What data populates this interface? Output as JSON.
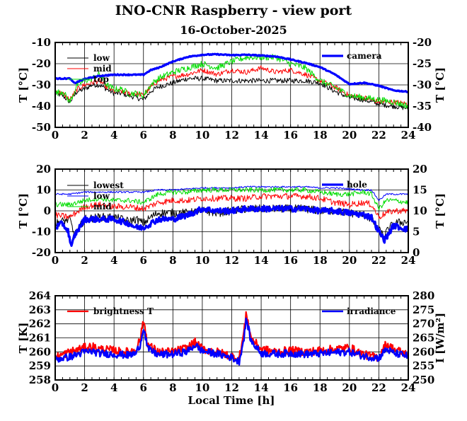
{
  "title": "INO-CNR Raspberry - view port",
  "subtitle": "16-October-2025",
  "colors": {
    "black": "#000000",
    "red": "#ff0000",
    "green": "#00dd00",
    "blue": "#0000ff"
  },
  "chart_data": [
    {
      "type": "line",
      "name": "temperatures-top",
      "xlim": [
        0,
        24
      ],
      "xticks": [
        0,
        2,
        4,
        6,
        8,
        10,
        12,
        14,
        16,
        18,
        20,
        22,
        24
      ],
      "ylim": [
        -50,
        -10
      ],
      "yticks": [
        -50,
        -40,
        -30,
        -20,
        -10
      ],
      "ylabel": "T [°C]",
      "y2lim": [
        -40,
        -20
      ],
      "y2ticks": [
        -40,
        -35,
        -30,
        -25,
        -20
      ],
      "y2label": "T [°C]",
      "legend_left": [
        "low",
        "mid",
        "top"
      ],
      "legend_right": [
        "camera"
      ],
      "series": [
        {
          "name": "low",
          "color": "black",
          "axis": "left",
          "noise": 1.2,
          "x": [
            0,
            0.5,
            1,
            1.5,
            2,
            2.5,
            3,
            3.5,
            4,
            4.5,
            5,
            5.5,
            6,
            6.5,
            7,
            8,
            9,
            10,
            11,
            12,
            13,
            14,
            15,
            16,
            17,
            18,
            19,
            20,
            21,
            22,
            23,
            24
          ],
          "y": [
            -34,
            -35,
            -38,
            -33,
            -32,
            -30,
            -30,
            -32,
            -34,
            -34,
            -35,
            -36,
            -37,
            -33,
            -31,
            -29,
            -27,
            -27,
            -28,
            -28,
            -28,
            -28,
            -28,
            -28,
            -28,
            -29,
            -33,
            -36,
            -37,
            -39,
            -40,
            -41
          ]
        },
        {
          "name": "mid",
          "color": "red",
          "axis": "left",
          "noise": 1.2,
          "x": [
            0,
            0.5,
            1,
            1.5,
            2,
            2.5,
            3,
            3.5,
            4,
            4.5,
            5,
            5.5,
            6,
            6.5,
            7,
            8,
            9,
            10,
            11,
            12,
            13,
            14,
            15,
            16,
            17,
            18,
            19,
            20,
            21,
            22,
            23,
            24
          ],
          "y": [
            -33,
            -34,
            -37,
            -32,
            -30,
            -29,
            -28,
            -31,
            -33,
            -33,
            -34,
            -34,
            -35,
            -31,
            -28,
            -26,
            -25,
            -23,
            -25,
            -23,
            -24,
            -22,
            -24,
            -23,
            -25,
            -28,
            -31,
            -35,
            -36,
            -38,
            -38,
            -39
          ]
        },
        {
          "name": "top",
          "color": "green",
          "axis": "left",
          "noise": 1.5,
          "x": [
            0,
            0.5,
            1,
            1.5,
            2,
            2.5,
            3,
            3.5,
            4,
            4.5,
            5,
            5.5,
            6,
            6.5,
            7,
            8,
            9,
            10,
            11,
            12,
            13,
            14,
            15,
            16,
            17,
            18,
            19,
            20,
            21,
            22,
            23,
            24
          ],
          "y": [
            -34,
            -33,
            -38,
            -30,
            -28,
            -27,
            -25,
            -30,
            -32,
            -32,
            -34,
            -34,
            -35,
            -30,
            -27,
            -24,
            -22,
            -20,
            -22,
            -19,
            -17,
            -17,
            -17,
            -20,
            -22,
            -28,
            -31,
            -35,
            -36,
            -37,
            -38,
            -40
          ]
        },
        {
          "name": "camera",
          "color": "blue",
          "axis": "right",
          "width": 3.2,
          "noise": 0.12,
          "x": [
            0,
            1,
            1.3,
            2,
            3,
            4,
            5,
            6,
            6.5,
            7,
            8,
            9,
            10,
            11,
            12,
            13,
            14,
            15,
            16,
            17,
            18,
            19,
            20,
            21,
            22,
            23,
            24
          ],
          "y": [
            -28.5,
            -28.5,
            -29.6,
            -28.6,
            -27.9,
            -27.6,
            -27.6,
            -27.6,
            -26.5,
            -26,
            -24.5,
            -23.4,
            -22.9,
            -22.8,
            -23,
            -22.9,
            -23.1,
            -23.3,
            -24,
            -24.8,
            -25.8,
            -27.5,
            -29.8,
            -29.5,
            -30.2,
            -31.3,
            -31.6
          ]
        }
      ]
    },
    {
      "type": "line",
      "name": "temperatures-middle",
      "xlim": [
        0,
        24
      ],
      "xticks": [
        0,
        2,
        4,
        6,
        8,
        10,
        12,
        14,
        16,
        18,
        20,
        22,
        24
      ],
      "ylim": [
        -20,
        20
      ],
      "yticks": [
        -20,
        -10,
        0,
        10,
        20
      ],
      "ylabel": "T [°C]",
      "y2lim": [
        0,
        20
      ],
      "y2ticks": [
        0,
        5,
        10,
        15,
        20
      ],
      "y2label": "T [°C]",
      "legend_left": [
        "lowest",
        "low",
        "mid"
      ],
      "legend_right": [
        "hole"
      ],
      "series": [
        {
          "name": "lowest",
          "color": "black",
          "axis": "left",
          "noise": 2.0,
          "x": [
            0,
            1,
            1.3,
            2,
            3,
            4,
            5,
            5.5,
            6,
            6.5,
            7,
            8,
            9,
            10,
            11,
            12,
            13,
            14,
            15,
            16,
            17,
            18,
            19,
            20,
            21,
            21.5,
            22,
            22.3,
            23,
            24
          ],
          "y": [
            -6,
            -4,
            -12,
            -4,
            -3,
            -3,
            -5,
            -4,
            -6,
            -3,
            -1,
            -1,
            -1,
            0,
            -1,
            0,
            1,
            1,
            1,
            1,
            1,
            0,
            0,
            -1,
            -2,
            -4,
            -9,
            -12,
            -6,
            -5
          ]
        },
        {
          "name": "low",
          "color": "blue",
          "axis": "left",
          "width": 1.0,
          "noise": 0.4,
          "x": [
            0,
            1,
            2,
            3,
            4,
            5,
            6,
            7,
            8,
            9,
            10,
            11,
            12,
            13,
            14,
            15,
            16,
            17,
            18,
            19,
            20,
            21,
            21.5,
            22,
            22.5,
            23,
            24
          ],
          "y": [
            8,
            8,
            9,
            9,
            9,
            9,
            9,
            10,
            10,
            10.5,
            11,
            11,
            11,
            11.5,
            11.5,
            11.5,
            11.5,
            11.5,
            11,
            11,
            10.5,
            10,
            10,
            5,
            8,
            8,
            8
          ]
        },
        {
          "name": "mid",
          "color": "green",
          "axis": "left",
          "noise": 1.2,
          "x": [
            0,
            1,
            2,
            3,
            4,
            5,
            6,
            7,
            8,
            9,
            10,
            11,
            12,
            13,
            14,
            15,
            16,
            17,
            18,
            19,
            20,
            21,
            21.5,
            22,
            22.5,
            23,
            24
          ],
          "y": [
            3,
            3,
            5,
            6,
            5,
            5,
            4,
            8,
            9,
            9,
            10,
            10,
            10,
            10,
            10,
            10,
            10,
            10,
            9,
            8,
            8,
            9,
            8,
            1,
            5,
            5,
            4
          ]
        },
        {
          "name": "top",
          "color": "red",
          "axis": "left",
          "noise": 1.5,
          "x": [
            0,
            1,
            2,
            3,
            4,
            5,
            6,
            7,
            8,
            9,
            10,
            11,
            12,
            13,
            14,
            15,
            16,
            17,
            18,
            19,
            20,
            21,
            21.5,
            22,
            22.5,
            23,
            24
          ],
          "y": [
            -2,
            -3,
            2,
            3,
            2,
            2,
            1,
            4,
            5,
            5,
            6,
            6,
            6,
            6,
            7,
            7,
            7,
            7,
            6,
            4,
            3,
            4,
            3,
            -3,
            -1,
            0,
            0
          ]
        },
        {
          "name": "hole",
          "color": "blue",
          "axis": "right",
          "width": 3.2,
          "noise": 0.7,
          "x": [
            0,
            0.5,
            0.9,
            1.1,
            1.3,
            2,
            3,
            4,
            5,
            5.5,
            6,
            6.5,
            7,
            8,
            9,
            10,
            11,
            12,
            13,
            14,
            15,
            16,
            17,
            18,
            19,
            20,
            21,
            21.5,
            22,
            22.4,
            23,
            24
          ],
          "y": [
            6,
            7,
            5,
            1,
            4,
            8,
            8,
            8,
            7,
            6,
            6,
            7,
            8,
            8,
            9,
            10.5,
            10,
            10,
            10.5,
            10.5,
            10.5,
            10.5,
            10.5,
            10,
            10,
            9.5,
            9,
            8.5,
            5,
            3,
            6.5,
            5.5
          ]
        }
      ]
    },
    {
      "type": "line",
      "name": "brightness-irradiance",
      "xlim": [
        0,
        24
      ],
      "xticks": [
        0,
        2,
        4,
        6,
        8,
        10,
        12,
        14,
        16,
        18,
        20,
        22,
        24
      ],
      "xlabel": "Local Time [h]",
      "ylim": [
        258,
        264
      ],
      "yticks": [
        258,
        259,
        260,
        261,
        262,
        263,
        264
      ],
      "ylabel": "T [K]",
      "y2lim": [
        250,
        280
      ],
      "y2ticks": [
        250,
        255,
        260,
        265,
        270,
        275,
        280
      ],
      "y2label": "I [W/m²]",
      "legend_left": [
        "brightness T"
      ],
      "legend_right": [
        "irradiance"
      ],
      "series": [
        {
          "name": "brightness T",
          "color": "red",
          "axis": "left",
          "width": 2.2,
          "noise": 0.3,
          "x": [
            0,
            0.5,
            1,
            2,
            2.5,
            3,
            4,
            4.5,
            5,
            5.5,
            5.8,
            6,
            6.3,
            7,
            8,
            9,
            9.5,
            10,
            11,
            12,
            12.5,
            12.8,
            13,
            13.3,
            14,
            15,
            16,
            17,
            18,
            19,
            20,
            21,
            22,
            22.5,
            23,
            24
          ],
          "y": [
            259.6,
            259.8,
            260,
            260.3,
            260.4,
            260.2,
            260.1,
            260,
            260,
            260.2,
            261,
            262.3,
            260.5,
            260,
            260,
            260.3,
            260.7,
            260.2,
            260,
            259.7,
            259.5,
            261.2,
            262.8,
            261,
            260.2,
            260,
            260.1,
            260,
            260.1,
            260.2,
            260.3,
            259.8,
            259.6,
            260.6,
            260.2,
            259.8
          ]
        },
        {
          "name": "irradiance",
          "color": "blue",
          "axis": "right",
          "width": 2.4,
          "noise": 1.3,
          "x": [
            0,
            0.5,
            1,
            2,
            2.5,
            3,
            4,
            4.5,
            5,
            5.5,
            5.8,
            6,
            6.3,
            7,
            8,
            9,
            9.5,
            10,
            11,
            12,
            12.5,
            12.8,
            13,
            13.3,
            14,
            15,
            16,
            17,
            18,
            19,
            20,
            21,
            22,
            22.5,
            23,
            24
          ],
          "y": [
            257.3,
            257.8,
            258.2,
            260,
            260.2,
            259.5,
            259.2,
            259,
            258.8,
            259.5,
            263,
            269,
            261,
            259,
            259.2,
            260.2,
            262.5,
            260.3,
            259.3,
            258,
            256.5,
            264,
            272,
            264,
            259.5,
            259.3,
            259.5,
            259.2,
            259.4,
            259.8,
            260,
            258.5,
            257.8,
            261,
            259.6,
            258.5
          ]
        }
      ]
    }
  ]
}
